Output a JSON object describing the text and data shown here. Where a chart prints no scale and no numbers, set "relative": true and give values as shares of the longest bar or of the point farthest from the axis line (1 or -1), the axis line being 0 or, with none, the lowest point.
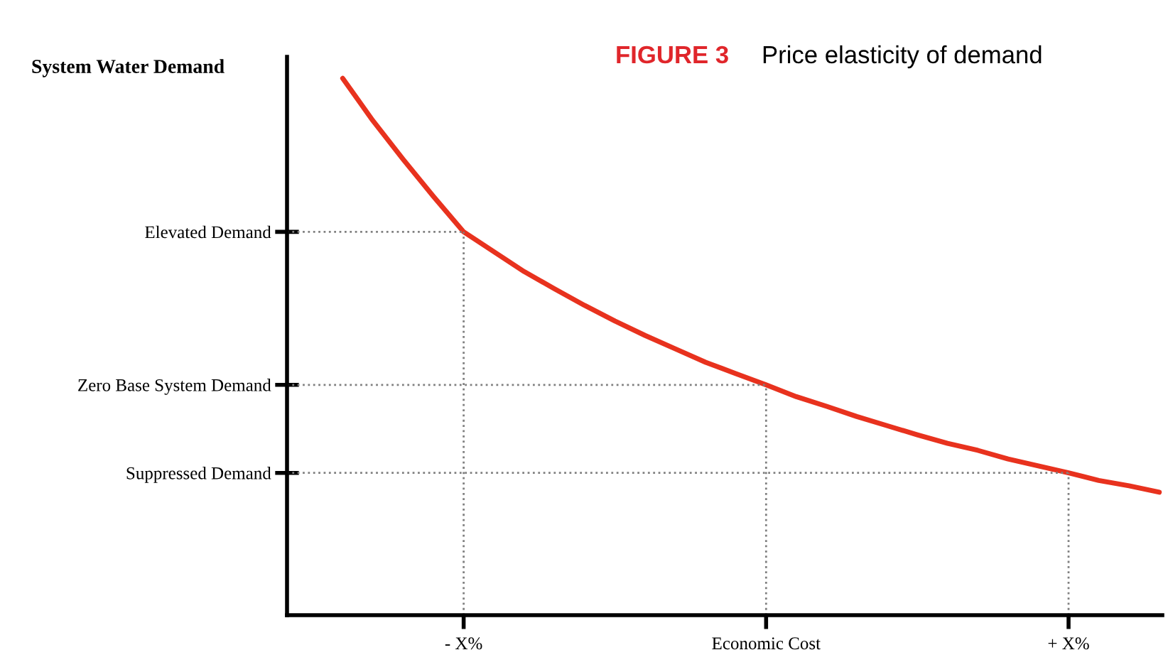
{
  "chart_data": {
    "type": "line",
    "relative": true,
    "title": "FIGURE 3",
    "subtitle": "Price elasticity of demand",
    "annotations": [
      "System Water Demand"
    ],
    "categories": [
      null,
      null,
      null,
      null,
      "- X%",
      null,
      null,
      null,
      null,
      null,
      null,
      null,
      null,
      null,
      "Economic Cost",
      null,
      null,
      null,
      null,
      null,
      null,
      null,
      null,
      null,
      "+ X%",
      null,
      null,
      null
    ],
    "series": [
      {
        "color": "#e8321e",
        "values": [
          1,
          0.921,
          0.849,
          0.78,
          0.714,
          0.677,
          0.64,
          0.608,
          0.577,
          0.548,
          0.521,
          0.496,
          0.471,
          0.45,
          0.429,
          0.407,
          0.389,
          0.37,
          0.353,
          0.336,
          0.32,
          0.307,
          0.291,
          0.278,
          0.265,
          0.251,
          0.241,
          0.229
        ]
      }
    ],
    "ref_lines": [
      {
        "axis": "y",
        "value": 0.714,
        "label": "Elevated Demand",
        "color": "#808080",
        "line_style": "dotted"
      },
      {
        "axis": "y",
        "value": 0.429,
        "label": "Zero Base System Demand",
        "color": "#808080",
        "line_style": "dotted"
      },
      {
        "axis": "y",
        "value": 0.265,
        "label": "Suppressed Demand",
        "color": "#808080",
        "line_style": "dotted"
      },
      {
        "axis": "x",
        "value": "- X%",
        "color": "#808080",
        "line_style": "dotted"
      },
      {
        "axis": "x",
        "value": "Economic Cost",
        "color": "#808080",
        "line_style": "dotted"
      },
      {
        "axis": "x",
        "value": "+ X%",
        "color": "#808080",
        "line_style": "dotted"
      }
    ],
    "grid": false,
    "marker": "none",
    "line_style": "solid",
    "legend": false
  }
}
